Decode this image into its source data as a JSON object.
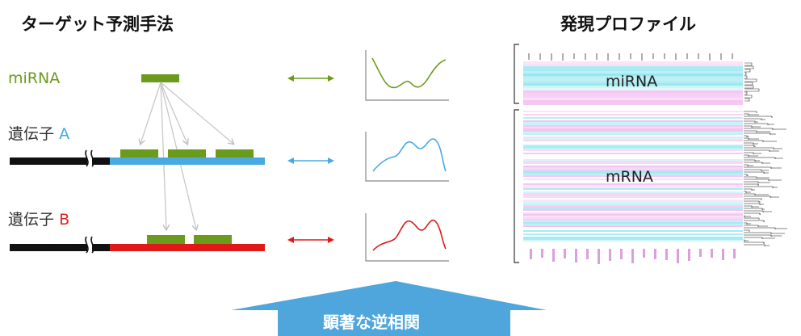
{
  "titles": {
    "left": "ターゲット予測手法",
    "right": "発現プロファイル"
  },
  "labels": {
    "mirna": "miRNA",
    "gene_a_prefix": "遺伝子",
    "gene_a_letter": "A",
    "gene_b_prefix": "遺伝子",
    "gene_b_letter": "B"
  },
  "heatmap": {
    "mirna_label": "miRNA",
    "mrna_label": "mRNA"
  },
  "bottom_arrow": {
    "text": "顕著な逆相関"
  },
  "colors": {
    "mirna_green": "#6b9b1c",
    "gene_a_blue": "#4aa9e2",
    "gene_b_red": "#e01818",
    "arrow_blue": "#4fa6dc",
    "heatmap_cyan": "#8fe6ef",
    "heatmap_magenta": "#f2b6ee"
  }
}
